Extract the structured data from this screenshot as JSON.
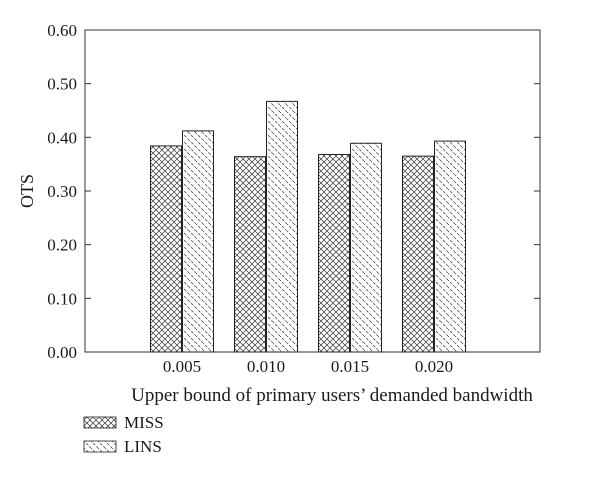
{
  "chart_data": {
    "type": "bar",
    "categories": [
      "0.005",
      "0.010",
      "0.015",
      "0.020"
    ],
    "series": [
      {
        "name": "MISS",
        "values": [
          0.384,
          0.364,
          0.368,
          0.365
        ],
        "pattern": "crosshatch"
      },
      {
        "name": "LINS",
        "values": [
          0.412,
          0.467,
          0.389,
          0.393
        ],
        "pattern": "diagonal"
      }
    ],
    "title": "",
    "xlabel": "Upper bound of primary users’ demanded bandwidth",
    "ylabel": "OTS",
    "ylim": [
      0,
      0.6
    ],
    "yticks": [
      "0.00",
      "0.10",
      "0.20",
      "0.30",
      "0.40",
      "0.50",
      "0.60"
    ],
    "grid": false,
    "legend_position": "bottom-left"
  }
}
